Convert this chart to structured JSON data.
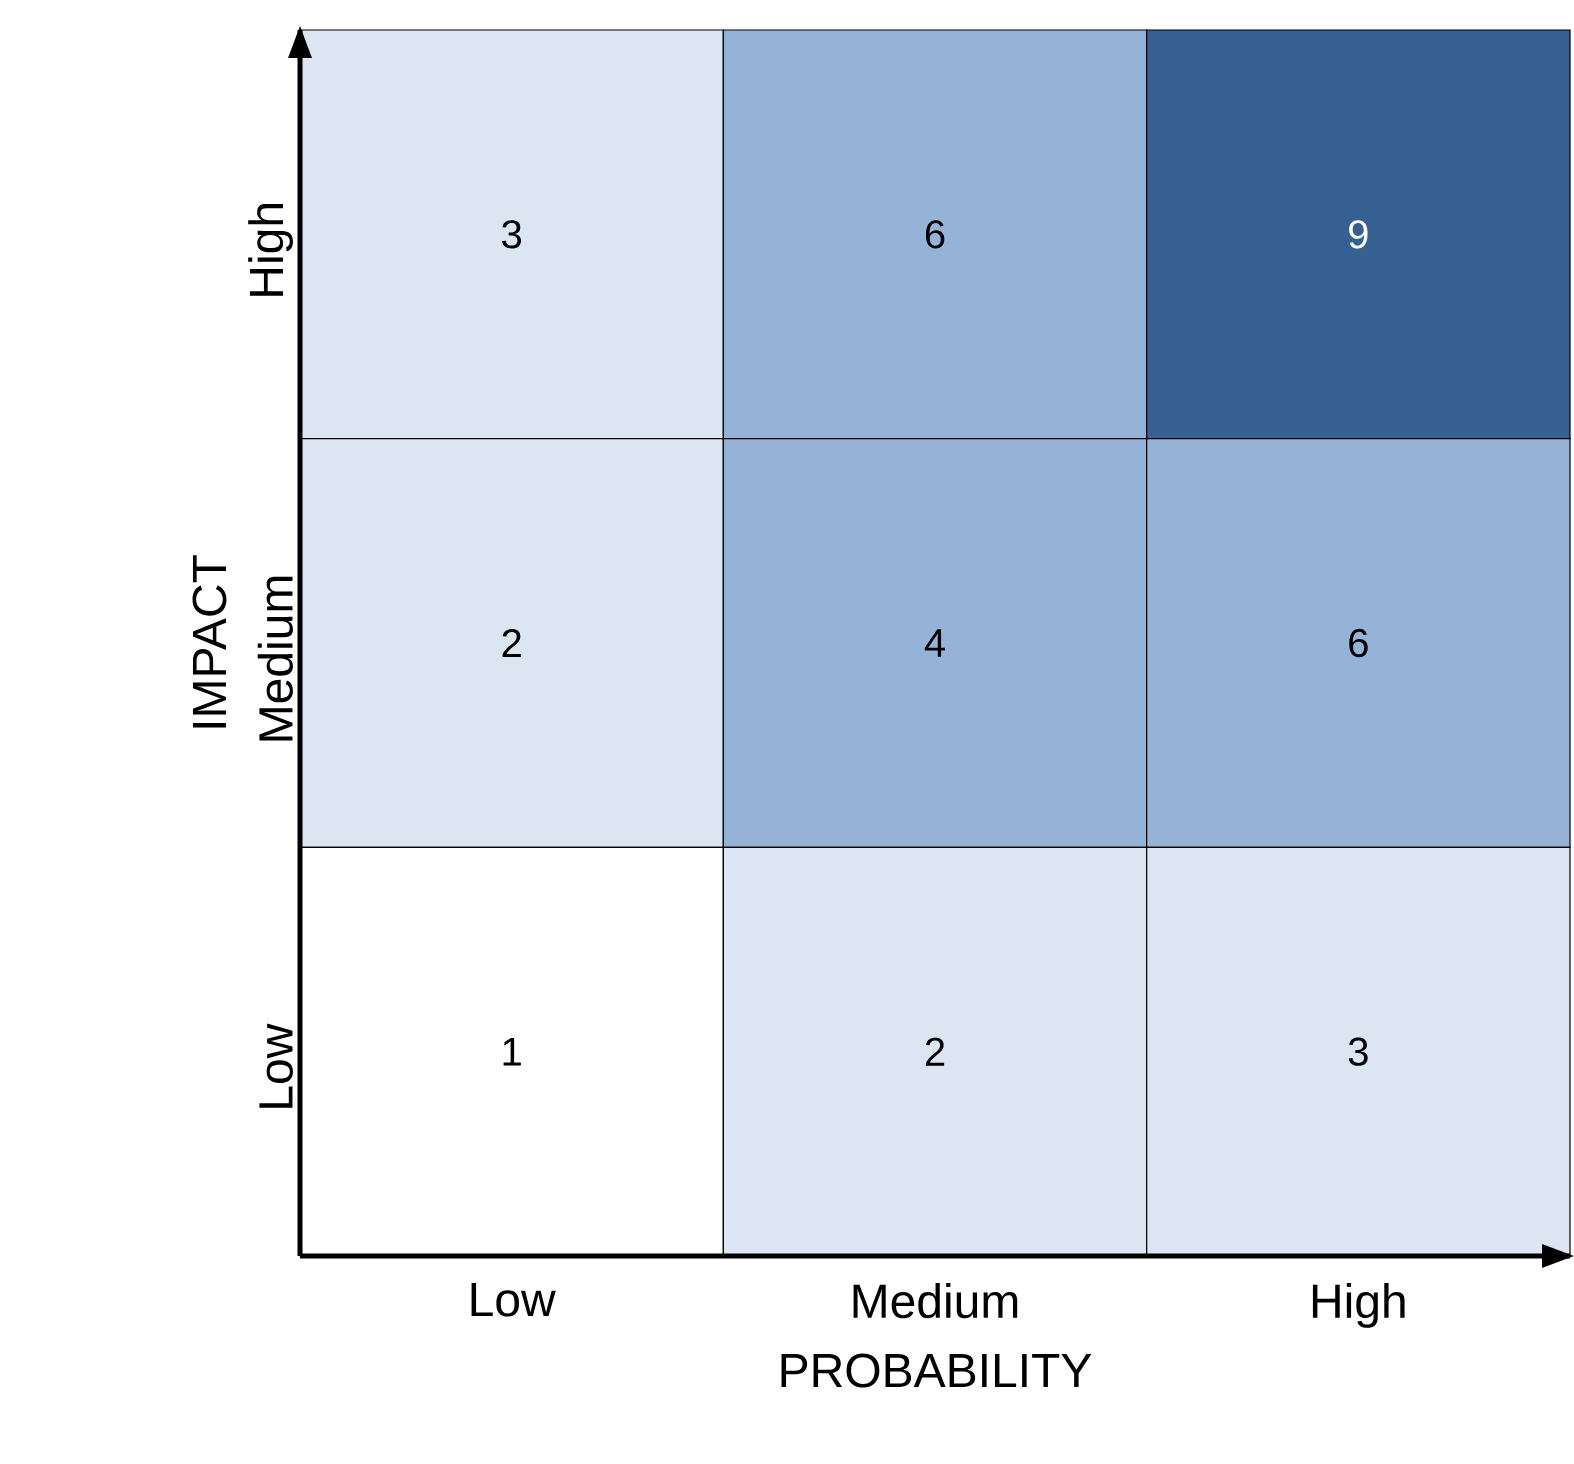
{
  "chart_data": {
    "type": "heatmap",
    "xlabel": "PROBABILITY",
    "ylabel": "IMPACT",
    "categories": [
      "Low",
      "Medium",
      "High"
    ],
    "y_categories": [
      "High",
      "Medium",
      "Low"
    ],
    "cells": [
      [
        3,
        6,
        9
      ],
      [
        2,
        4,
        6
      ],
      [
        1,
        2,
        3
      ]
    ],
    "colors": [
      [
        "#dce6f2",
        "#95b3d7",
        "#366092"
      ],
      [
        "#dce6f2",
        "#95b3d7",
        "#95b3d7"
      ],
      [
        "#ffffff",
        "#dce6f2",
        "#dce6f2"
      ]
    ],
    "data_labels": true
  }
}
